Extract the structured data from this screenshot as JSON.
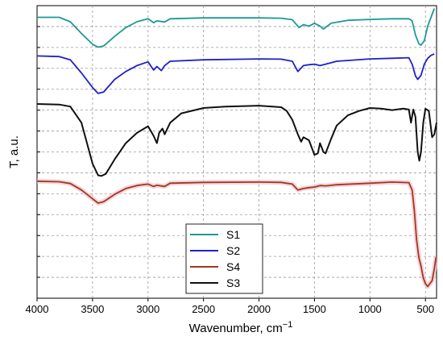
{
  "chart_data": {
    "type": "line",
    "xlabel": "Wavenumber, cm",
    "xlabel_superscript": "−1",
    "ylabel": "T, a.u.",
    "xlim": [
      4000,
      400
    ],
    "x_ticks": [
      4000,
      3500,
      3000,
      2500,
      2000,
      1500,
      1000,
      500
    ],
    "grid": true,
    "legend_placement": "bottom-center",
    "series": [
      {
        "name": "S1",
        "color": "#1a9a94",
        "points": [
          [
            4000,
            0.96
          ],
          [
            3800,
            0.96
          ],
          [
            3700,
            0.945
          ],
          [
            3600,
            0.905
          ],
          [
            3500,
            0.868
          ],
          [
            3450,
            0.858
          ],
          [
            3400,
            0.862
          ],
          [
            3300,
            0.895
          ],
          [
            3200,
            0.925
          ],
          [
            3100,
            0.945
          ],
          [
            3000,
            0.955
          ],
          [
            2950,
            0.942
          ],
          [
            2920,
            0.948
          ],
          [
            2850,
            0.944
          ],
          [
            2800,
            0.955
          ],
          [
            2500,
            0.958
          ],
          [
            2000,
            0.958
          ],
          [
            1800,
            0.957
          ],
          [
            1700,
            0.952
          ],
          [
            1640,
            0.925
          ],
          [
            1600,
            0.935
          ],
          [
            1550,
            0.93
          ],
          [
            1500,
            0.94
          ],
          [
            1450,
            0.93
          ],
          [
            1420,
            0.92
          ],
          [
            1350,
            0.94
          ],
          [
            1200,
            0.95
          ],
          [
            1000,
            0.953
          ],
          [
            800,
            0.955
          ],
          [
            650,
            0.955
          ],
          [
            620,
            0.948
          ],
          [
            590,
            0.9
          ],
          [
            560,
            0.87
          ],
          [
            540,
            0.865
          ],
          [
            510,
            0.88
          ],
          [
            480,
            0.93
          ],
          [
            450,
            0.96
          ],
          [
            420,
            0.99
          ]
        ]
      },
      {
        "name": "S2",
        "color": "#2020c8",
        "points": [
          [
            4000,
            0.828
          ],
          [
            3800,
            0.826
          ],
          [
            3700,
            0.815
          ],
          [
            3600,
            0.77
          ],
          [
            3500,
            0.72
          ],
          [
            3450,
            0.7
          ],
          [
            3400,
            0.705
          ],
          [
            3300,
            0.748
          ],
          [
            3200,
            0.775
          ],
          [
            3100,
            0.795
          ],
          [
            3000,
            0.808
          ],
          [
            2950,
            0.78
          ],
          [
            2920,
            0.792
          ],
          [
            2880,
            0.778
          ],
          [
            2850,
            0.795
          ],
          [
            2800,
            0.81
          ],
          [
            2500,
            0.815
          ],
          [
            2000,
            0.818
          ],
          [
            1800,
            0.817
          ],
          [
            1700,
            0.81
          ],
          [
            1650,
            0.775
          ],
          [
            1600,
            0.795
          ],
          [
            1550,
            0.798
          ],
          [
            1500,
            0.8
          ],
          [
            1450,
            0.795
          ],
          [
            1400,
            0.8
          ],
          [
            1300,
            0.81
          ],
          [
            1000,
            0.818
          ],
          [
            800,
            0.82
          ],
          [
            650,
            0.822
          ],
          [
            620,
            0.8
          ],
          [
            590,
            0.76
          ],
          [
            570,
            0.748
          ],
          [
            540,
            0.762
          ],
          [
            510,
            0.8
          ],
          [
            480,
            0.82
          ],
          [
            450,
            0.83
          ],
          [
            420,
            0.835
          ]
        ]
      },
      {
        "name": "S3",
        "color": "#101010",
        "points": [
          [
            4000,
            0.664
          ],
          [
            3800,
            0.662
          ],
          [
            3700,
            0.655
          ],
          [
            3600,
            0.6
          ],
          [
            3550,
            0.53
          ],
          [
            3500,
            0.46
          ],
          [
            3450,
            0.42
          ],
          [
            3420,
            0.418
          ],
          [
            3380,
            0.425
          ],
          [
            3300,
            0.475
          ],
          [
            3200,
            0.53
          ],
          [
            3100,
            0.565
          ],
          [
            3000,
            0.588
          ],
          [
            2950,
            0.555
          ],
          [
            2920,
            0.53
          ],
          [
            2900,
            0.565
          ],
          [
            2870,
            0.58
          ],
          [
            2850,
            0.56
          ],
          [
            2800,
            0.6
          ],
          [
            2700,
            0.632
          ],
          [
            2500,
            0.65
          ],
          [
            2300,
            0.655
          ],
          [
            2000,
            0.658
          ],
          [
            1800,
            0.653
          ],
          [
            1750,
            0.64
          ],
          [
            1700,
            0.61
          ],
          [
            1650,
            0.56
          ],
          [
            1620,
            0.535
          ],
          [
            1600,
            0.55
          ],
          [
            1550,
            0.54
          ],
          [
            1500,
            0.49
          ],
          [
            1470,
            0.495
          ],
          [
            1450,
            0.53
          ],
          [
            1420,
            0.5
          ],
          [
            1400,
            0.495
          ],
          [
            1350,
            0.545
          ],
          [
            1300,
            0.59
          ],
          [
            1200,
            0.625
          ],
          [
            1100,
            0.64
          ],
          [
            1000,
            0.65
          ],
          [
            900,
            0.648
          ],
          [
            800,
            0.643
          ],
          [
            700,
            0.648
          ],
          [
            650,
            0.645
          ],
          [
            630,
            0.6
          ],
          [
            610,
            0.645
          ],
          [
            590,
            0.62
          ],
          [
            570,
            0.5
          ],
          [
            555,
            0.47
          ],
          [
            540,
            0.5
          ],
          [
            520,
            0.6
          ],
          [
            500,
            0.648
          ],
          [
            470,
            0.64
          ],
          [
            440,
            0.55
          ],
          [
            420,
            0.56
          ],
          [
            400,
            0.6
          ]
        ]
      },
      {
        "name": "S4",
        "color": "#9e3a1e",
        "points": [
          [
            4000,
            0.4
          ],
          [
            3800,
            0.398
          ],
          [
            3700,
            0.392
          ],
          [
            3600,
            0.37
          ],
          [
            3500,
            0.34
          ],
          [
            3450,
            0.325
          ],
          [
            3400,
            0.33
          ],
          [
            3300,
            0.355
          ],
          [
            3200,
            0.375
          ],
          [
            3100,
            0.385
          ],
          [
            3000,
            0.39
          ],
          [
            2950,
            0.382
          ],
          [
            2920,
            0.386
          ],
          [
            2850,
            0.382
          ],
          [
            2800,
            0.393
          ],
          [
            2500,
            0.396
          ],
          [
            2000,
            0.397
          ],
          [
            1800,
            0.396
          ],
          [
            1700,
            0.39
          ],
          [
            1650,
            0.37
          ],
          [
            1600,
            0.375
          ],
          [
            1550,
            0.378
          ],
          [
            1500,
            0.38
          ],
          [
            1450,
            0.385
          ],
          [
            1400,
            0.384
          ],
          [
            1300,
            0.388
          ],
          [
            1000,
            0.393
          ],
          [
            800,
            0.397
          ],
          [
            650,
            0.395
          ],
          [
            620,
            0.37
          ],
          [
            600,
            0.3
          ],
          [
            580,
            0.2
          ],
          [
            560,
            0.14
          ],
          [
            540,
            0.11
          ],
          [
            520,
            0.07
          ],
          [
            500,
            0.05
          ],
          [
            480,
            0.04
          ],
          [
            460,
            0.05
          ],
          [
            440,
            0.06
          ],
          [
            420,
            0.1
          ],
          [
            405,
            0.14
          ]
        ]
      }
    ],
    "legend_order": [
      "S1",
      "S2",
      "S4",
      "S3"
    ]
  }
}
